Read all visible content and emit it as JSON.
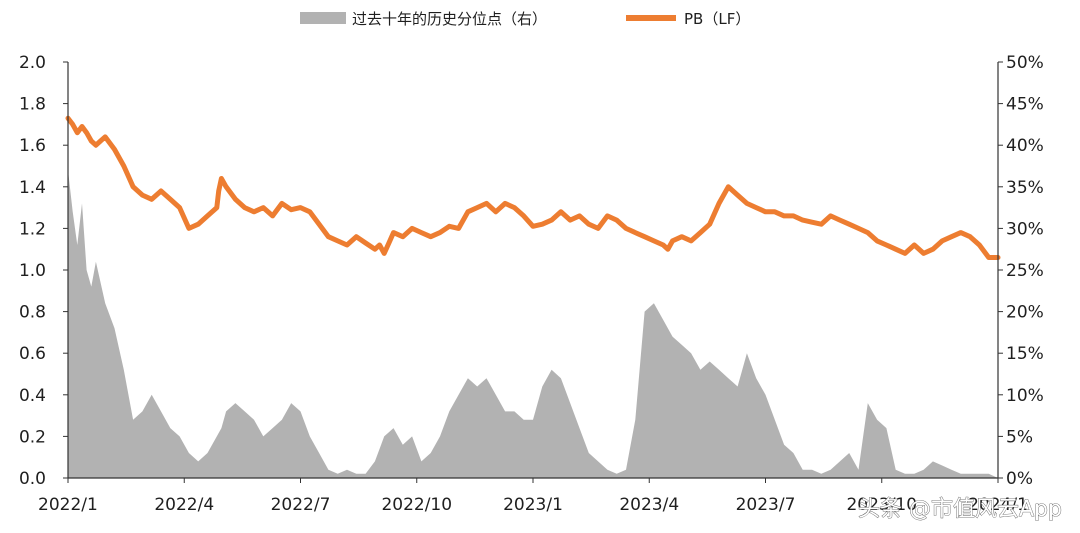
{
  "chart_data": {
    "type": "area",
    "title": "",
    "legend": {
      "placement": "top-center",
      "entries": [
        {
          "label": "过去十年的历史分位点（右）",
          "color": "#b2b2b2",
          "kind": "area"
        },
        {
          "label": "PB（LF）",
          "color": "#ed7d31",
          "kind": "line"
        }
      ]
    },
    "x_tick_labels": [
      "2022/1",
      "2022/4",
      "2022/7",
      "2022/10",
      "2023/1",
      "2023/4",
      "2023/7",
      "2023/10",
      "2024/1"
    ],
    "x_range": [
      "2022-01",
      "2024-01"
    ],
    "y_left": {
      "min": 0.0,
      "max": 2.0,
      "step": 0.2,
      "ticks": [
        "0.0",
        "0.2",
        "0.4",
        "0.6",
        "0.8",
        "1.0",
        "1.2",
        "1.4",
        "1.6",
        "1.8",
        "2.0"
      ]
    },
    "y_right": {
      "min": 0,
      "max": 50,
      "step": 5,
      "ticks": [
        "0%",
        "5%",
        "10%",
        "15%",
        "20%",
        "25%",
        "30%",
        "35%",
        "40%",
        "45%",
        "50%"
      ]
    },
    "grid": false,
    "series": [
      {
        "name": "PB（LF）",
        "axis": "left",
        "color": "#ed7d31",
        "x": [
          0.0,
          0.05,
          0.1,
          0.15,
          0.2,
          0.25,
          0.3,
          0.35,
          0.4,
          0.5,
          0.6,
          0.7,
          0.8,
          0.9,
          1.0,
          1.1,
          1.2,
          1.3,
          1.4,
          1.5,
          1.6,
          1.62,
          1.65,
          1.7,
          1.8,
          1.9,
          2.0,
          2.1,
          2.2,
          2.3,
          2.4,
          2.5,
          2.6,
          2.7,
          2.8,
          2.9,
          3.0,
          3.1,
          3.2,
          3.3,
          3.35,
          3.4,
          3.45,
          3.5,
          3.6,
          3.7,
          3.8,
          3.9,
          4.0,
          4.1,
          4.2,
          4.3,
          4.4,
          4.5,
          4.6,
          4.7,
          4.8,
          4.9,
          5.0,
          5.1,
          5.2,
          5.3,
          5.4,
          5.5,
          5.6,
          5.7,
          5.8,
          5.9,
          6.0,
          6.1,
          6.2,
          6.3,
          6.4,
          6.45,
          6.5,
          6.6,
          6.7,
          6.8,
          6.9,
          7.0,
          7.1,
          7.2,
          7.3,
          7.4,
          7.5,
          7.6,
          7.7,
          7.8,
          7.9,
          8.0,
          8.1,
          8.2,
          8.3,
          8.4,
          8.5,
          8.6,
          8.7,
          8.8,
          8.9,
          9.0,
          9.1,
          9.2,
          9.3,
          9.4,
          9.5,
          9.6,
          9.7,
          9.8,
          9.9,
          10.0
        ],
        "values": [
          1.73,
          1.7,
          1.66,
          1.69,
          1.66,
          1.62,
          1.6,
          1.62,
          1.64,
          1.58,
          1.5,
          1.4,
          1.36,
          1.34,
          1.38,
          1.34,
          1.3,
          1.2,
          1.22,
          1.26,
          1.3,
          1.38,
          1.44,
          1.4,
          1.34,
          1.3,
          1.28,
          1.3,
          1.26,
          1.32,
          1.29,
          1.3,
          1.28,
          1.22,
          1.16,
          1.14,
          1.12,
          1.16,
          1.13,
          1.1,
          1.12,
          1.08,
          1.13,
          1.18,
          1.16,
          1.2,
          1.18,
          1.16,
          1.18,
          1.21,
          1.2,
          1.28,
          1.3,
          1.32,
          1.28,
          1.32,
          1.3,
          1.26,
          1.21,
          1.22,
          1.24,
          1.28,
          1.24,
          1.26,
          1.22,
          1.2,
          1.26,
          1.24,
          1.2,
          1.18,
          1.16,
          1.14,
          1.12,
          1.1,
          1.14,
          1.16,
          1.14,
          1.18,
          1.22,
          1.32,
          1.4,
          1.36,
          1.32,
          1.3,
          1.28,
          1.28,
          1.26,
          1.26,
          1.24,
          1.23,
          1.22,
          1.26,
          1.24,
          1.22,
          1.2,
          1.18,
          1.14,
          1.12,
          1.1,
          1.08,
          1.12,
          1.08,
          1.1,
          1.14,
          1.16,
          1.18,
          1.16,
          1.12,
          1.06,
          1.06
        ]
      },
      {
        "name": "过去十年的历史分位点（右）",
        "axis": "right",
        "color": "#b2b2b2",
        "x": [
          0.0,
          0.05,
          0.1,
          0.15,
          0.2,
          0.25,
          0.3,
          0.4,
          0.5,
          0.6,
          0.7,
          0.8,
          0.9,
          1.0,
          1.1,
          1.2,
          1.3,
          1.4,
          1.5,
          1.6,
          1.65,
          1.7,
          1.8,
          1.9,
          2.0,
          2.1,
          2.2,
          2.3,
          2.4,
          2.5,
          2.6,
          2.7,
          2.8,
          2.9,
          3.0,
          3.1,
          3.2,
          3.3,
          3.4,
          3.5,
          3.6,
          3.7,
          3.8,
          3.9,
          4.0,
          4.1,
          4.2,
          4.3,
          4.4,
          4.5,
          4.6,
          4.7,
          4.8,
          4.9,
          5.0,
          5.1,
          5.2,
          5.3,
          5.4,
          5.5,
          5.6,
          5.7,
          5.8,
          5.9,
          6.0,
          6.1,
          6.2,
          6.3,
          6.4,
          6.5,
          6.6,
          6.7,
          6.8,
          6.9,
          7.0,
          7.1,
          7.2,
          7.3,
          7.4,
          7.5,
          7.6,
          7.7,
          7.8,
          7.9,
          8.0,
          8.1,
          8.2,
          8.3,
          8.4,
          8.5,
          8.6,
          8.7,
          8.8,
          8.9,
          9.0,
          9.1,
          9.2,
          9.3,
          9.4,
          9.5,
          9.6,
          9.7,
          9.8,
          9.9,
          10.0
        ],
        "values": [
          37.0,
          32.0,
          28.0,
          33.0,
          25.0,
          23.0,
          26.0,
          21.0,
          18.0,
          13.0,
          7.0,
          8.0,
          10.0,
          8.0,
          6.0,
          5.0,
          3.0,
          2.0,
          3.0,
          5.0,
          6.0,
          8.0,
          9.0,
          8.0,
          7.0,
          5.0,
          6.0,
          7.0,
          9.0,
          8.0,
          5.0,
          3.0,
          1.0,
          0.5,
          1.0,
          0.5,
          0.5,
          2.0,
          5.0,
          6.0,
          4.0,
          5.0,
          2.0,
          3.0,
          5.0,
          8.0,
          10.0,
          12.0,
          11.0,
          12.0,
          10.0,
          8.0,
          8.0,
          7.0,
          7.0,
          11.0,
          13.0,
          12.0,
          9.0,
          6.0,
          3.0,
          2.0,
          1.0,
          0.5,
          1.0,
          7.0,
          20.0,
          21.0,
          19.0,
          17.0,
          16.0,
          15.0,
          13.0,
          14.0,
          13.0,
          12.0,
          11.0,
          15.0,
          12.0,
          10.0,
          7.0,
          4.0,
          3.0,
          1.0,
          1.0,
          0.5,
          1.0,
          2.0,
          3.0,
          1.0,
          9.0,
          7.0,
          6.0,
          1.0,
          0.5,
          0.5,
          1.0,
          2.0,
          1.5,
          1.0,
          0.5,
          0.5,
          0.5,
          0.5,
          0.0
        ]
      }
    ]
  },
  "watermark": {
    "text": "头条 @市值风云App"
  }
}
